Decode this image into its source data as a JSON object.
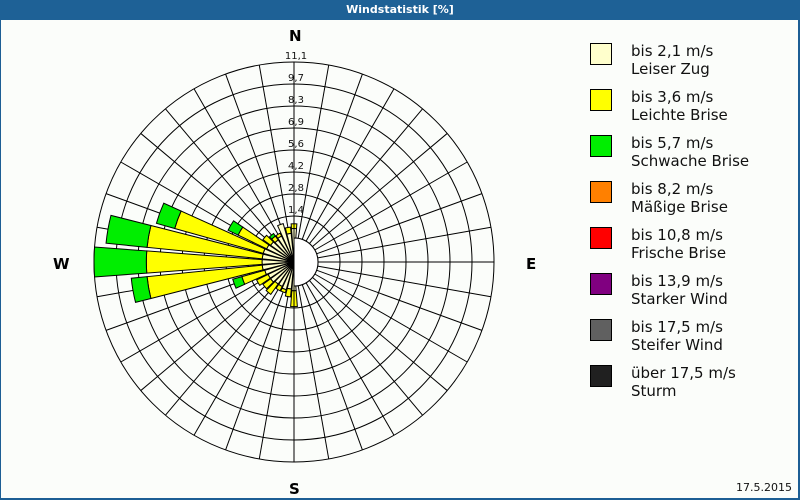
{
  "window": {
    "title": "Windstatistik [%]"
  },
  "compass": {
    "north": "N",
    "east": "E",
    "south": "S",
    "west": "W"
  },
  "date": "17.5.2015",
  "legend": [
    {
      "range": "bis 2,1 m/s",
      "name": "Leiser Zug",
      "color": "#ffffcc"
    },
    {
      "range": "bis 3,6 m/s",
      "name": "Leichte Brise",
      "color": "#ffff00"
    },
    {
      "range": "bis 5,7 m/s",
      "name": "Schwache Brise",
      "color": "#00ee00"
    },
    {
      "range": "bis 8,2 m/s",
      "name": "Mäßige Brise",
      "color": "#ff8000"
    },
    {
      "range": "bis 10,8 m/s",
      "name": "Frische Brise",
      "color": "#ff0000"
    },
    {
      "range": "bis 13,9 m/s",
      "name": "Starker Wind",
      "color": "#800080"
    },
    {
      "range": "bis 17,5 m/s",
      "name": "Steifer Wind",
      "color": "#606060"
    },
    {
      "range": "über 17,5 m/s",
      "name": "Sturm",
      "color": "#202020"
    }
  ],
  "chart_data": {
    "type": "wind-rose",
    "title": "Windstatistik [%]",
    "unit": "%",
    "ring_labels": [
      "1,4",
      "2,8",
      "4,2",
      "5,6",
      "6,9",
      "8,3",
      "9,7",
      "11,1"
    ],
    "rmax": 11.1,
    "sector_width_deg": 10,
    "series_order": [
      "bis 2,1 m/s",
      "bis 3,6 m/s",
      "bis 5,7 m/s"
    ],
    "sectors": [
      {
        "dir": 0,
        "values": [
          0.6,
          0.3,
          0
        ]
      },
      {
        "dir": 180,
        "values": [
          0.3,
          1.0,
          0
        ]
      },
      {
        "dir": 190,
        "values": [
          0.2,
          0.5,
          0
        ]
      },
      {
        "dir": 200,
        "values": [
          0.3,
          0.2,
          0
        ]
      },
      {
        "dir": 210,
        "values": [
          0.2,
          0.3,
          0
        ]
      },
      {
        "dir": 220,
        "values": [
          0.2,
          0.8,
          0
        ]
      },
      {
        "dir": 230,
        "values": [
          0.3,
          0.6,
          0
        ]
      },
      {
        "dir": 240,
        "values": [
          0.3,
          0.8,
          0
        ]
      },
      {
        "dir": 250,
        "values": [
          0.4,
          1.5,
          0.6
        ]
      },
      {
        "dir": 260,
        "values": [
          0.5,
          7.3,
          1.0
        ]
      },
      {
        "dir": 270,
        "values": [
          0.5,
          7.3,
          3.3
        ]
      },
      {
        "dir": 280,
        "values": [
          0.5,
          7.3,
          2.6
        ]
      },
      {
        "dir": 290,
        "values": [
          0.5,
          5.8,
          1.2
        ]
      },
      {
        "dir": 300,
        "values": [
          0.4,
          2.0,
          0.7
        ]
      },
      {
        "dir": 310,
        "values": [
          0.3,
          0.6,
          0
        ]
      },
      {
        "dir": 320,
        "values": [
          0.2,
          0.3,
          0.2
        ]
      },
      {
        "dir": 330,
        "values": [
          0.3,
          0.2,
          0
        ]
      },
      {
        "dir": 340,
        "values": [
          1.0,
          0,
          0
        ]
      },
      {
        "dir": 350,
        "values": [
          0.3,
          0.4,
          0
        ]
      }
    ]
  }
}
